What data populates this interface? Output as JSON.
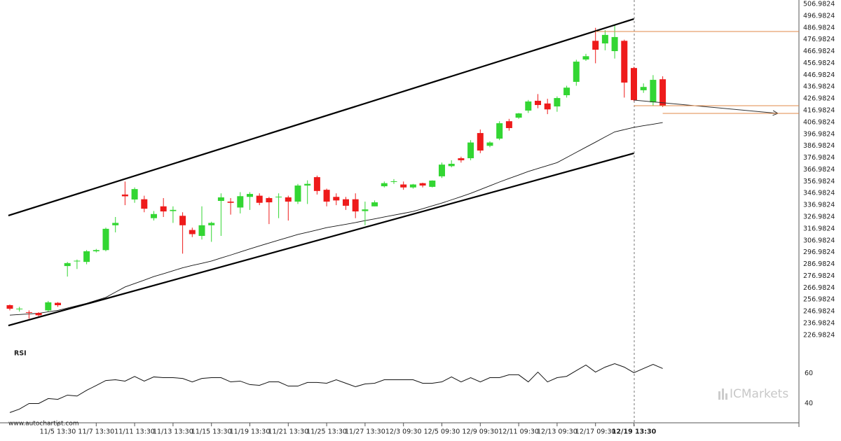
{
  "chart_data": [
    {
      "type": "candlestick",
      "categories": [
        null,
        null,
        null,
        null,
        null,
        "11/5 13:30",
        null,
        null,
        null,
        "11/7 13:30",
        null,
        null,
        null,
        "11/11 13:30",
        null,
        null,
        null,
        "11/13 13:30",
        null,
        null,
        null,
        "11/15 13:30",
        null,
        null,
        null,
        "11/19 13:30",
        null,
        null,
        null,
        "11/21 13:30",
        null,
        null,
        null,
        "11/25 13:30",
        null,
        null,
        null,
        "11/27 13:30",
        null,
        null,
        null,
        "12/3 09:30",
        null,
        null,
        null,
        "12/5 09:30",
        null,
        null,
        null,
        "12/9 09:30",
        null,
        null,
        null,
        "12/11 09:30",
        null,
        null,
        null,
        "12/13 09:30",
        null,
        null,
        null,
        "12/17 09:30",
        null,
        null,
        null,
        "12/19 13:30",
        null,
        null,
        null
      ],
      "open": [
        252.4,
        249,
        246.5,
        245.8,
        248,
        254.4,
        285.5,
        289.6,
        289,
        298,
        299,
        320,
        346,
        341.8,
        342,
        326,
        336,
        332,
        328,
        316,
        311,
        320,
        340.6,
        340,
        335,
        344,
        345,
        343,
        344,
        343.6,
        340,
        353.6,
        360.7,
        350,
        344,
        342,
        342,
        332,
        336,
        353,
        357,
        354.5,
        352,
        355.6,
        352.5,
        361.4,
        370,
        376.7,
        376.7,
        398,
        387.2,
        393.3,
        408,
        411,
        417,
        425.3,
        423,
        420.5,
        430,
        441.3,
        460.2,
        476,
        473.8,
        467.3,
        476,
        453,
        434.2,
        424,
        443.5
      ],
      "high": [
        253,
        251,
        248,
        246.5,
        256,
        255,
        289,
        291,
        299,
        300,
        318,
        327,
        357,
        352,
        345,
        332,
        343,
        336,
        331,
        318,
        336,
        323,
        347,
        343,
        348,
        348,
        347,
        344,
        347,
        345,
        355,
        358,
        362,
        351,
        347,
        344,
        347,
        340,
        341,
        357,
        359,
        357,
        355,
        356,
        358,
        373,
        375,
        378,
        392,
        401,
        391,
        408,
        410,
        415,
        426,
        431,
        427,
        429,
        438,
        460,
        465,
        487,
        485,
        490,
        477,
        454,
        440,
        447,
        446
      ],
      "low": [
        248,
        247,
        241,
        243,
        247,
        251,
        276.6,
        283,
        287,
        297,
        298,
        314,
        337,
        339,
        331,
        324,
        327,
        322,
        296,
        310,
        308,
        306,
        311,
        329,
        330,
        333,
        337,
        321,
        326,
        324,
        338,
        338,
        346,
        336,
        337,
        333,
        326,
        320,
        336,
        352,
        355,
        350,
        351,
        352,
        352,
        360,
        369,
        373,
        375,
        381,
        386,
        392,
        400,
        410,
        415,
        419,
        414,
        416,
        428,
        438,
        459,
        457,
        468,
        461,
        428,
        425,
        432,
        421,
        420
      ],
      "close": [
        249.4,
        249.5,
        246,
        243.9,
        254.8,
        252.4,
        288,
        290,
        298,
        299,
        317,
        322,
        344.5,
        350.6,
        334,
        329.5,
        331.7,
        333,
        320,
        312.5,
        320,
        322,
        343.6,
        339,
        344.6,
        346.5,
        339,
        339.4,
        344.2,
        340,
        353.6,
        355,
        349,
        340,
        341,
        336.5,
        331.7,
        333.4,
        339.4,
        355.6,
        357.2,
        352,
        354.5,
        353.6,
        357.8,
        371.3,
        372,
        375,
        390,
        383.2,
        390,
        406.3,
        402.2,
        414.6,
        424.7,
        421.7,
        418,
        427.6,
        436.4,
        458.4,
        463,
        468.5,
        481,
        479.2,
        440.7,
        425.9,
        437,
        443,
        421
      ],
      "up_color": "#33d633",
      "down_color": "#ee1b1b",
      "ylim": [
        221.6,
        509.35
      ],
      "yticks": [
        506.9824,
        496.9824,
        486.9824,
        476.9824,
        466.9824,
        456.9824,
        446.9824,
        436.9824,
        426.9824,
        416.9824,
        406.9824,
        396.9824,
        386.9824,
        376.9824,
        366.9824,
        356.9824,
        346.9824,
        336.9824,
        326.9824,
        316.9824,
        306.9824,
        296.9824,
        286.9824,
        276.9824,
        266.9824,
        256.9824,
        246.9824,
        236.9824,
        226.9824
      ],
      "moving_average": {
        "color": "#111111",
        "values": [
          244,
          244.5,
          245,
          245.5,
          246.8,
          248,
          250,
          252,
          254,
          256.5,
          259,
          263.4,
          267.8,
          270.7,
          273.6,
          276.6,
          279,
          281.5,
          284,
          286,
          287.8,
          289.7,
          292.3,
          294.8,
          297.4,
          300,
          302.5,
          305,
          307.4,
          309.8,
          312.2,
          314.1,
          316,
          318,
          319.4,
          320.8,
          322.3,
          323.9,
          325.4,
          327,
          328.6,
          330.1,
          331.7,
          334,
          336.4,
          338.8,
          341.5,
          344.2,
          347,
          350.2,
          353.4,
          356.6,
          359.6,
          362.5,
          365.5,
          368,
          370.5,
          373,
          377.3,
          381.7,
          386,
          390.3,
          394.7,
          399,
          400.9,
          402.8,
          404.2,
          405.5,
          406.9
        ]
      },
      "trendlines": [
        {
          "color": "#000000",
          "points": [
            [
              -0.15,
              328.2
            ],
            [
              65,
              494.5
            ]
          ]
        },
        {
          "color": "#000000",
          "points": [
            [
              -0.15,
              235.2
            ],
            [
              65,
              380.9
            ]
          ]
        },
        {
          "color": "#333333",
          "arrow": true,
          "points": [
            [
              65,
              425.9
            ],
            [
              80,
              414.6
            ]
          ]
        }
      ],
      "levels": [
        {
          "color": "#e08a4a",
          "value": 483.9,
          "from": 61
        },
        {
          "color": "#e08a4a",
          "value": 421.1,
          "from": 65
        },
        {
          "color": "#e08a4a",
          "value": 414.6,
          "from": 68
        }
      ]
    },
    {
      "type": "line",
      "title": "RSI",
      "color": "#111111",
      "values": [
        34,
        36.3,
        40,
        40,
        43.3,
        42.8,
        45.6,
        45,
        48.8,
        52,
        55.3,
        55.8,
        54.9,
        58,
        54.9,
        57.7,
        57.2,
        57.2,
        56.7,
        54.4,
        56.7,
        57.2,
        57.2,
        54.4,
        54.9,
        52.6,
        52.1,
        54.4,
        54.4,
        51.6,
        51.6,
        54,
        54,
        53.5,
        55.8,
        53.5,
        51.2,
        53,
        53.5,
        55.8,
        55.8,
        55.8,
        55.8,
        53.5,
        53.5,
        54.4,
        57.7,
        54.4,
        57.2,
        54.4,
        57.2,
        57.2,
        59.1,
        59.1,
        54.4,
        60.9,
        54.4,
        57.2,
        58.1,
        61.9,
        65.6,
        60.9,
        64.2,
        66.5,
        64.2,
        60.5,
        63.3,
        66,
        63.3
      ],
      "ylim": [
        30,
        70
      ],
      "yticks": [
        60,
        40
      ]
    }
  ],
  "footer": {
    "source": "www.autochartist.com",
    "brand": "ICMarkets"
  }
}
